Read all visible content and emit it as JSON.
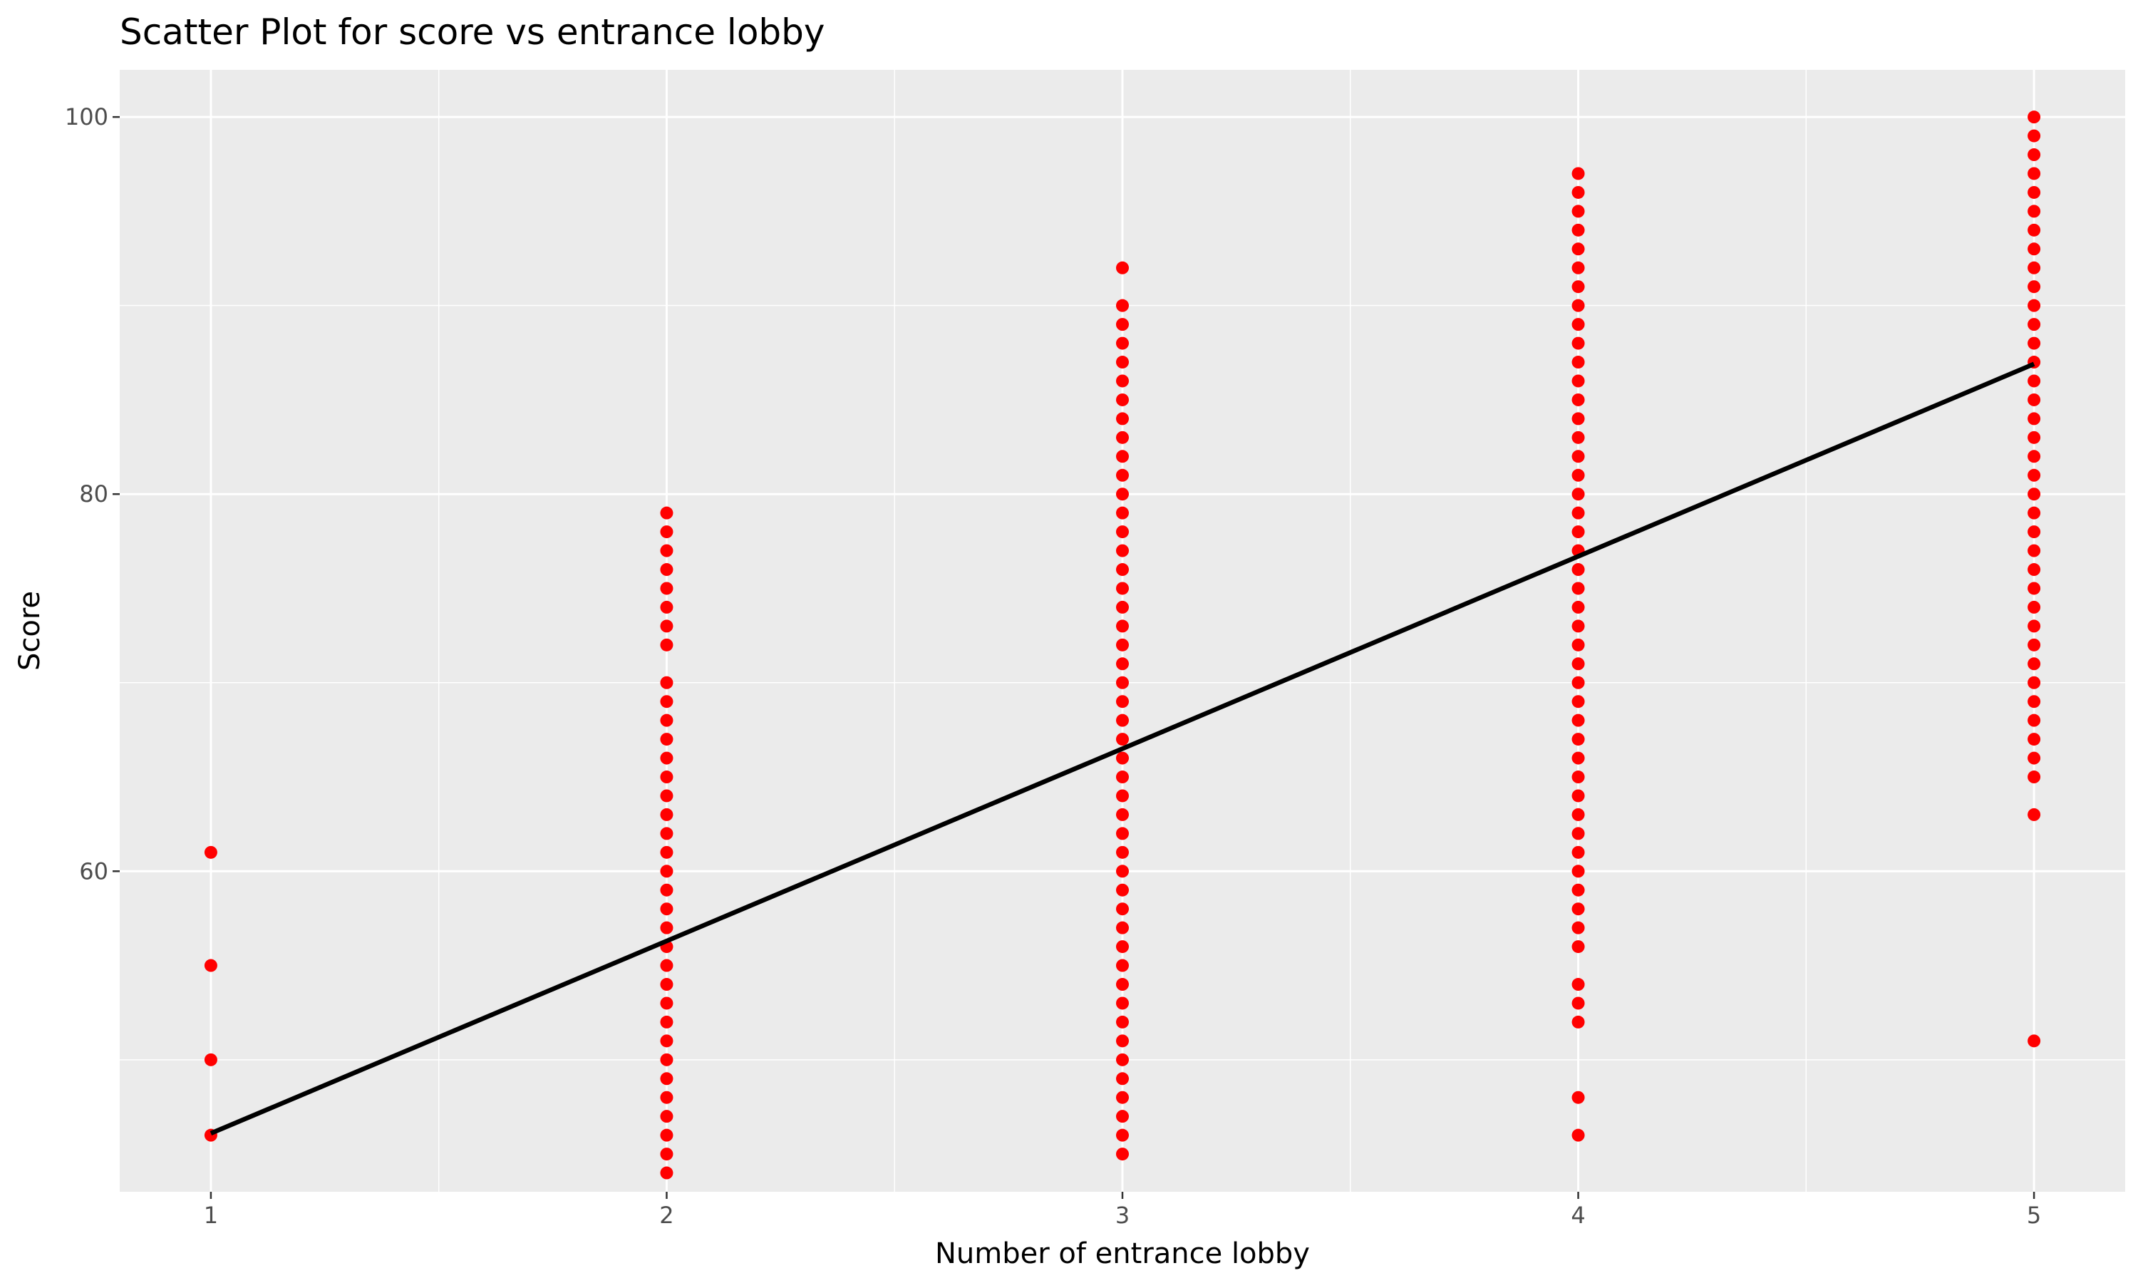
{
  "chart_data": {
    "type": "scatter",
    "title": "Scatter Plot for score vs entrance lobby",
    "xlabel": "Number of entrance lobby",
    "ylabel": "Score",
    "xlim": [
      0.8,
      5.2
    ],
    "ylim": [
      43.0,
      102.5
    ],
    "x_ticks": [
      1,
      2,
      3,
      4,
      5
    ],
    "y_ticks": [
      60,
      80,
      100
    ],
    "grid": true,
    "legend": "none",
    "point_color": "#ff0000",
    "line_color": "#000000",
    "panel_color": "#ebebeb",
    "grid_color": "#ffffff",
    "points": [
      {
        "x": 1,
        "y": [
          46,
          50,
          55,
          61
        ]
      },
      {
        "x": 2,
        "y": [
          44,
          45,
          46,
          47,
          48,
          49,
          50,
          51,
          52,
          53,
          54,
          55,
          56,
          57,
          58,
          59,
          60,
          61,
          62,
          63,
          64,
          65,
          66,
          67,
          68,
          69,
          70,
          72,
          73,
          74,
          75,
          76,
          77,
          78,
          79
        ]
      },
      {
        "x": 3,
        "y": [
          45,
          46,
          47,
          48,
          49,
          50,
          51,
          52,
          53,
          54,
          55,
          56,
          57,
          58,
          59,
          60,
          61,
          62,
          63,
          64,
          65,
          66,
          67,
          68,
          69,
          70,
          71,
          72,
          73,
          74,
          75,
          76,
          77,
          78,
          79,
          80,
          81,
          82,
          83,
          84,
          85,
          86,
          87,
          88,
          89,
          90,
          92
        ]
      },
      {
        "x": 4,
        "y": [
          46,
          48,
          52,
          53,
          54,
          56,
          57,
          58,
          59,
          60,
          61,
          62,
          63,
          64,
          65,
          66,
          67,
          68,
          69,
          70,
          71,
          72,
          73,
          74,
          75,
          76,
          77,
          78,
          79,
          80,
          81,
          82,
          83,
          84,
          85,
          86,
          87,
          88,
          89,
          90,
          91,
          92,
          93,
          94,
          95,
          96,
          97
        ]
      },
      {
        "x": 5,
        "y": [
          51,
          63,
          65,
          66,
          67,
          68,
          69,
          70,
          71,
          72,
          73,
          74,
          75,
          76,
          77,
          78,
          79,
          80,
          81,
          82,
          83,
          84,
          85,
          86,
          87,
          88,
          89,
          90,
          91,
          92,
          93,
          94,
          95,
          96,
          97,
          98,
          99,
          100
        ]
      }
    ],
    "fit_line": {
      "x": [
        1,
        5
      ],
      "y": [
        46.1,
        86.9
      ]
    }
  }
}
